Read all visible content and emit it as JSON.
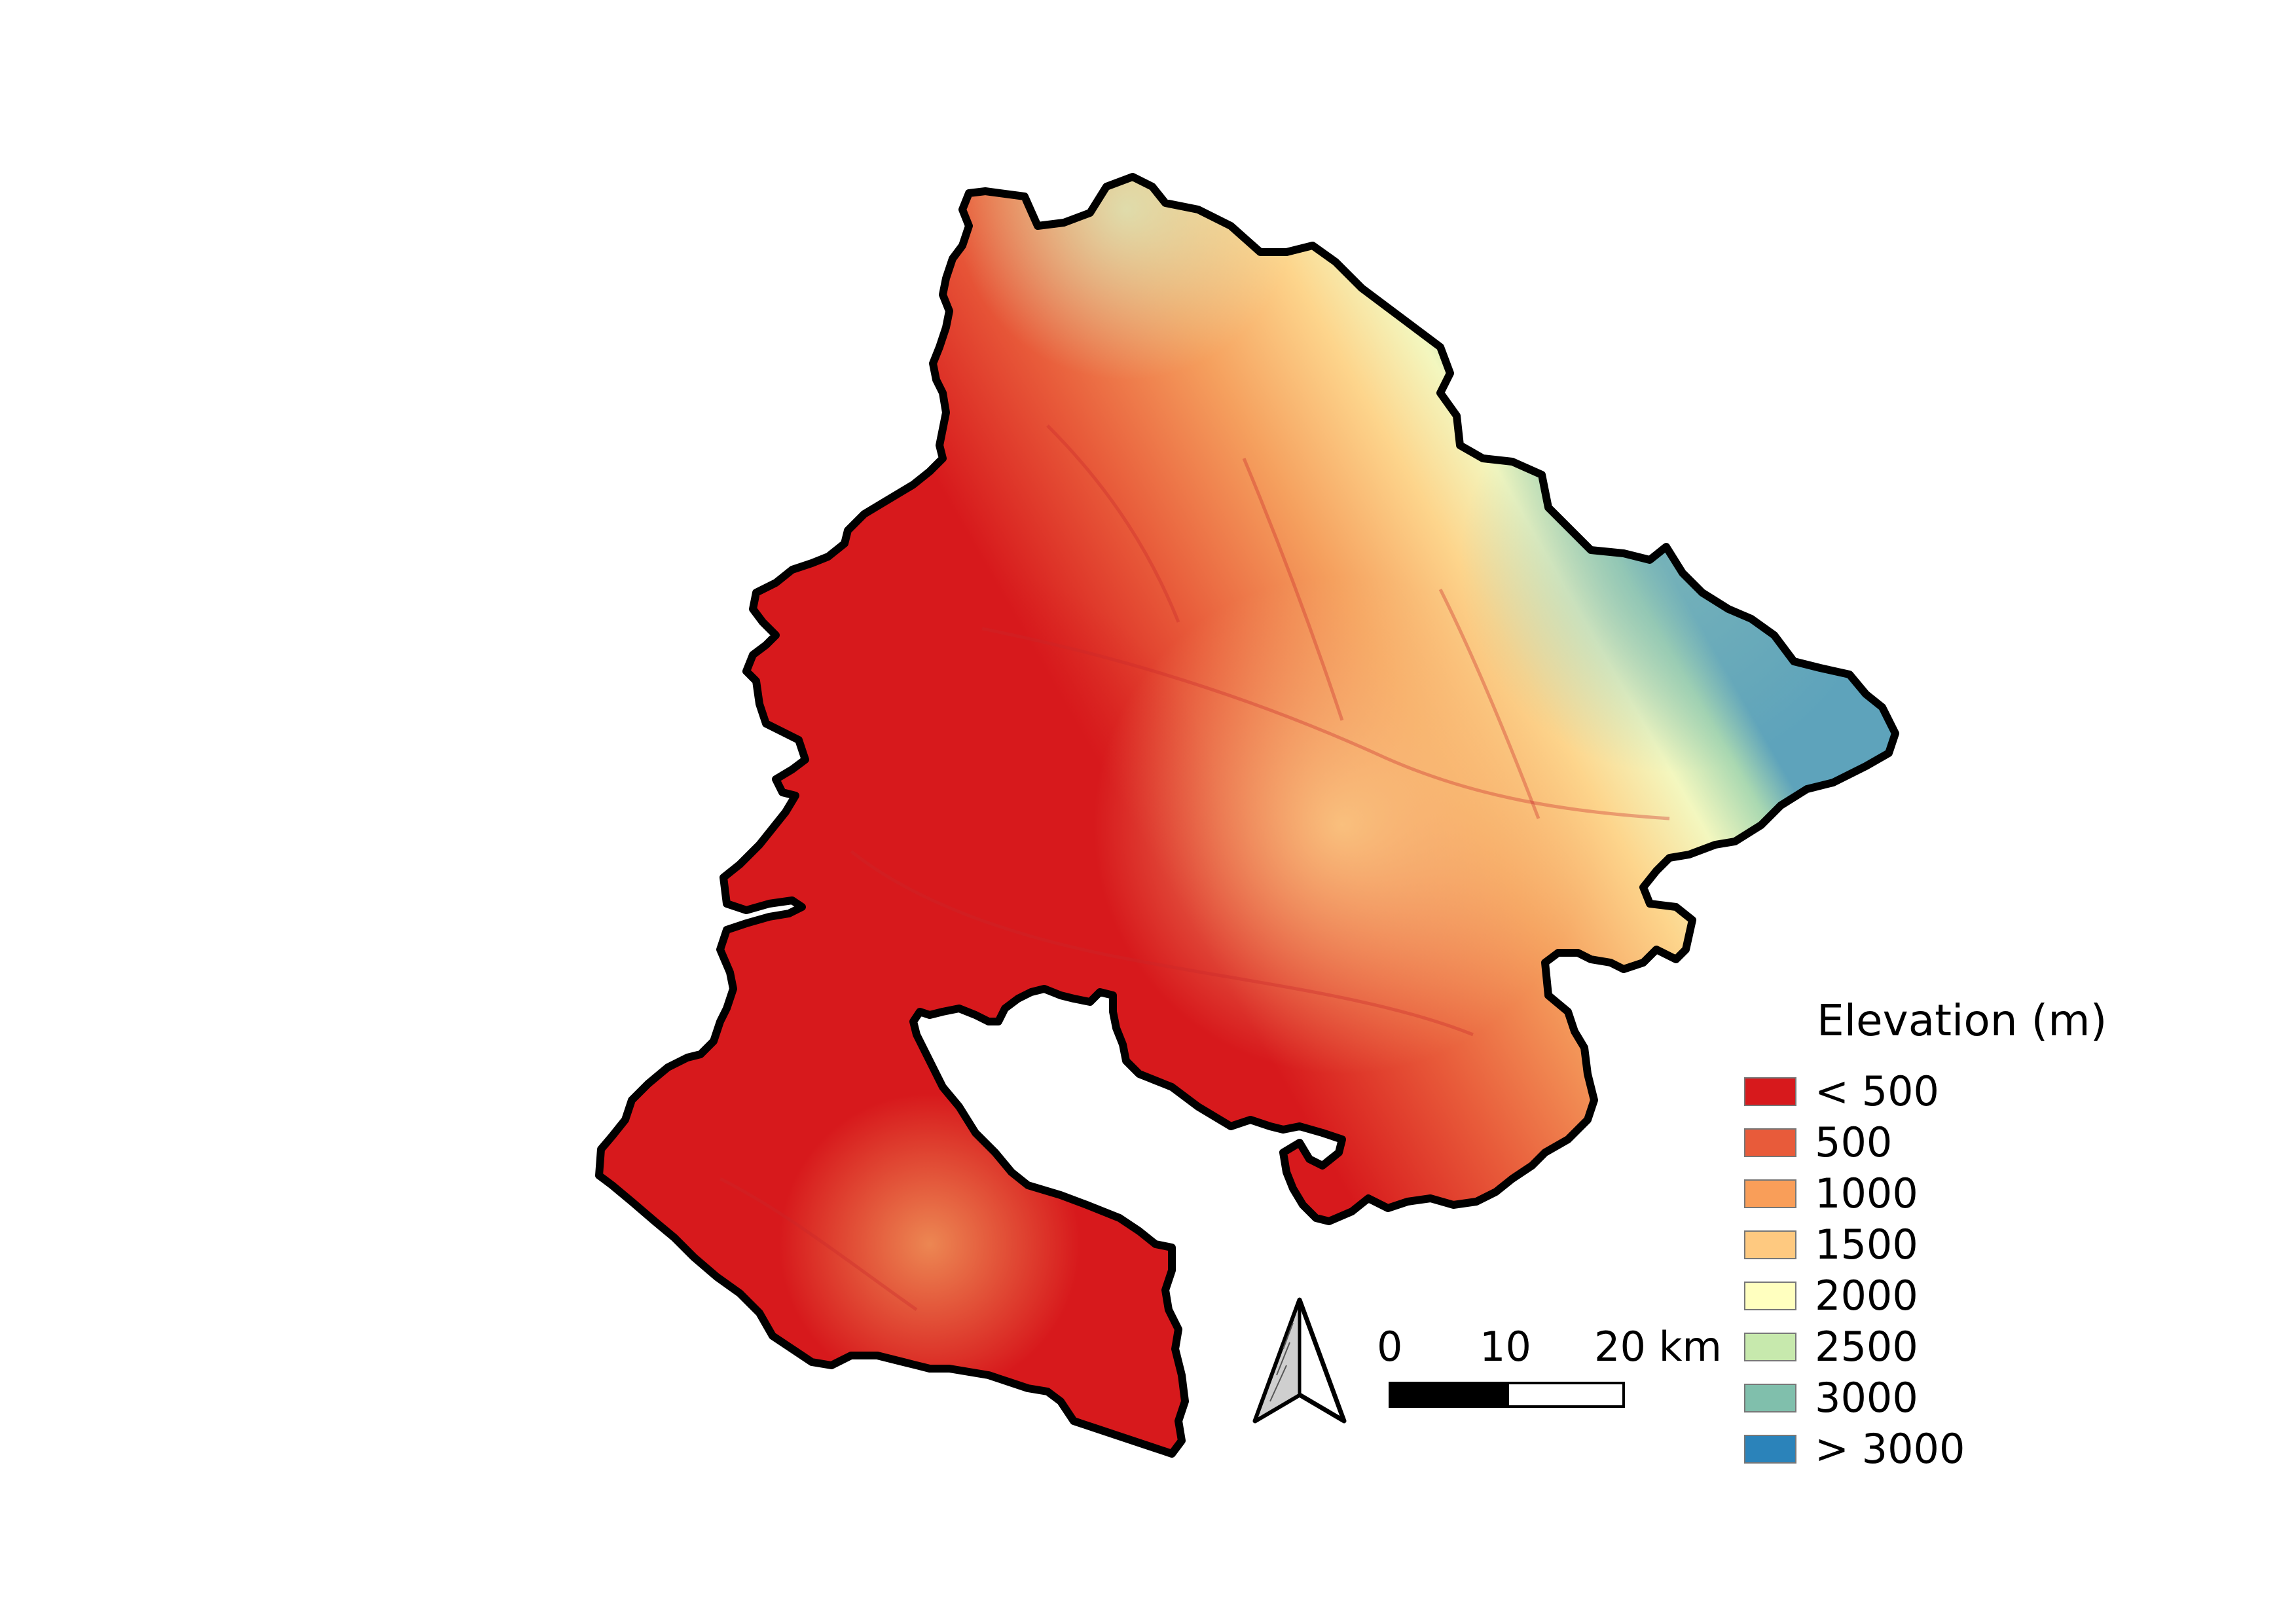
{
  "map": {
    "elevation_colors": [
      "#d7191c",
      "#e85b3a",
      "#f99e59",
      "#fec980",
      "#ffffbf",
      "#c7e9ad",
      "#80bfac",
      "#2b83ba"
    ]
  },
  "legend": {
    "title": "Elevation (m)",
    "items": [
      {
        "label": "< 500",
        "color": "#d7191c"
      },
      {
        "label": "500",
        "color": "#e85b3a"
      },
      {
        "label": "1000",
        "color": "#f99e59"
      },
      {
        "label": "1500",
        "color": "#fec980"
      },
      {
        "label": "2000",
        "color": "#ffffbf"
      },
      {
        "label": "2500",
        "color": "#c7e9ad"
      },
      {
        "label": "3000",
        "color": "#80bfac"
      },
      {
        "label": "> 3000",
        "color": "#2b83ba"
      }
    ]
  },
  "north_arrow": {
    "icon": "north-arrow-icon"
  },
  "scale_bar": {
    "labels": [
      "0",
      "10",
      "20 km"
    ]
  }
}
